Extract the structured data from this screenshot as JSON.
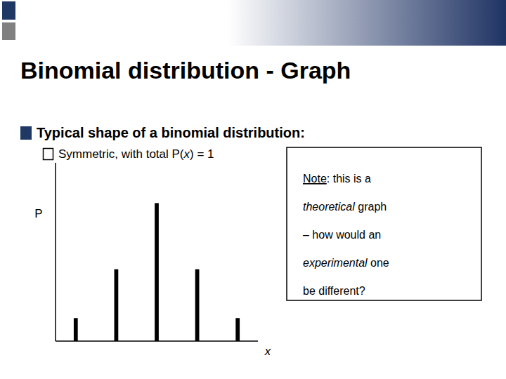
{
  "chart_data": {
    "type": "bar",
    "title": "Binomial distribution - Graph",
    "annotations": [
      "Typical shape of a binomial distribution:",
      "Symmetric, with total P(",
      "x",
      ") = 1",
      "Note",
      ": this is a",
      "theoretical",
      " graph",
      "– how would an",
      "experimental",
      " one",
      "be different?"
    ],
    "categories": [
      null,
      null,
      null,
      null,
      null
    ],
    "values": [
      0.08,
      0.25,
      0.48,
      0.25,
      0.08
    ],
    "color": "#000000",
    "x_label": "x",
    "y_label": "P",
    "ylim": [
      0,
      0.62
    ],
    "yticks": [],
    "tick_labels": false,
    "grid": false
  }
}
